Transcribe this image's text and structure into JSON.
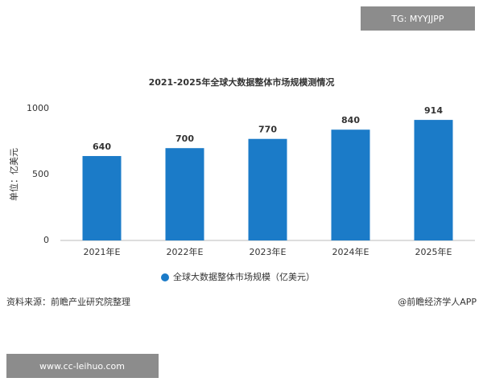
{
  "chart_data": {
    "type": "bar",
    "title": "2021-2025年全球大数据整体市场规模测情况",
    "y_label": "单位：亿美元",
    "categories": [
      "2021年E",
      "2022年E",
      "2023年E",
      "2024年E",
      "2025年E"
    ],
    "series": [
      {
        "name": "全球大数据整体市场规模（亿美元）",
        "color": "#1b7bc8",
        "values": [
          640,
          700,
          770,
          840,
          914
        ]
      }
    ],
    "ylim": [
      0,
      1000
    ],
    "yticks": [
      0,
      500,
      1000
    ],
    "grid": false,
    "source": "资料来源：前瞻产业研究院整理",
    "credit": "@前瞻经济学人APP",
    "overlay_top": "TG: MYYJJPP",
    "overlay_bottom": "www.cc-leihuo.com"
  }
}
